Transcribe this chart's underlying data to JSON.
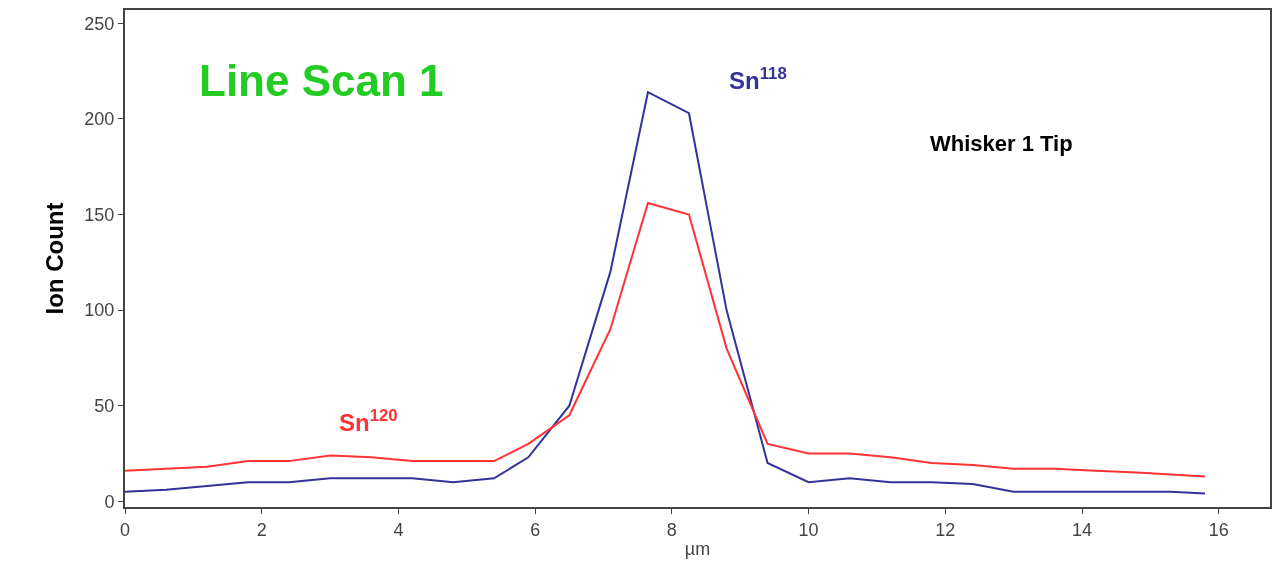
{
  "chart_data": {
    "type": "line",
    "title": "Line Scan 1",
    "xlabel": "µm",
    "ylabel": "Ion Count",
    "annotations": [
      "Whisker 1 Tip"
    ],
    "x": [
      0,
      0.6,
      1.2,
      1.8,
      2.4,
      3.0,
      3.6,
      4.2,
      4.8,
      5.4,
      5.9,
      6.5,
      7.1,
      7.65,
      8.25,
      8.8,
      9.4,
      10.0,
      10.6,
      11.2,
      11.8,
      12.4,
      13.0,
      13.6,
      14.2,
      14.8,
      15.3,
      15.8
    ],
    "series": [
      {
        "name": "Sn$^{118}$",
        "color": "#333399",
        "values": [
          5,
          6,
          8,
          10,
          10,
          12,
          12,
          12,
          10,
          12,
          23,
          50,
          120,
          214,
          203,
          100,
          20,
          10,
          12,
          10,
          10,
          9,
          5,
          5,
          5,
          5,
          5,
          4
        ]
      },
      {
        "name": "Sn$^{120}$",
        "color": "#ff3333",
        "values": [
          16,
          17,
          18,
          21,
          21,
          24,
          23,
          21,
          21,
          21,
          30,
          45,
          90,
          156,
          150,
          80,
          30,
          25,
          25,
          23,
          20,
          19,
          17,
          17,
          16,
          15,
          14,
          13
        ]
      }
    ],
    "xlim": [
      0,
      16.75
    ],
    "xticks": [
      0,
      2,
      4,
      6,
      8,
      10,
      12,
      14,
      16
    ],
    "ylim": [
      -3,
      257
    ],
    "yticks": [
      0,
      50,
      100,
      150,
      200,
      250
    ],
    "grid": false,
    "legend": false,
    "marker": "none",
    "line_style": "solid"
  }
}
